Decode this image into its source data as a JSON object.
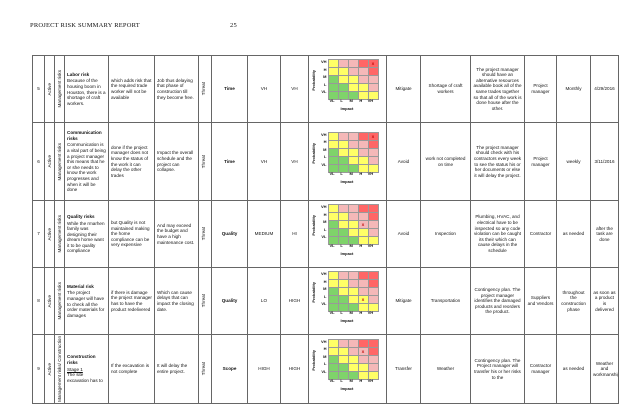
{
  "header": {
    "title": "PROJECT RISK SUMMARY REPORT",
    "page_number": "25"
  },
  "matrix_labels": {
    "probability": "Probability",
    "impact": "Impact",
    "row_levels": [
      "VH",
      "H",
      "M",
      "L",
      "VL"
    ],
    "col_levels": [
      "VL",
      "L",
      "M",
      "H",
      "VH"
    ],
    "mark": "X"
  },
  "colors": {
    "green": "#7fd36a",
    "yellow": "#ffff66",
    "red": "#ff6666",
    "pink": "#f5b8b8"
  },
  "rows": [
    {
      "id": "5",
      "status": "Active",
      "category": "Management risks",
      "title": "Labor risk",
      "description": "Because of the housing boom in Houston, there is a shortage of craft workers.",
      "cause": "which adds risk that the required trade worker will not be available",
      "effect": "Job thus delaying that phase of construction till they become free.",
      "type": "Threat",
      "objective": "Time",
      "probability": "VH",
      "impact": "VH",
      "mark_row": 0,
      "mark_col": 4,
      "response": "Mitigate",
      "trigger": "Shortage of craft workers",
      "plan": "The project manager should have an alternative resources available book all of the same trades together so that all of the work is done house after the other.",
      "owner": "Project manager",
      "frequency": "Monthly",
      "date": "4/29/2016"
    },
    {
      "id": "6",
      "status": "Active",
      "category": "Management risks",
      "title": "Communication risks",
      "description": "Communication is a vital part of being a project manager this means that he or she needs to know the work progresses and when it will be done",
      "cause": "done if the project manager does not know the status of the work it can delay the other trades",
      "effect": "Impact the overall schedule and the project can collapse.",
      "type": "Threat",
      "objective": "Time",
      "probability": "VH",
      "impact": "VH",
      "mark_row": 0,
      "mark_col": 4,
      "response": "Avoid",
      "trigger": "work not completed on time",
      "plan": "The project manager should check with his contractors every week to see the status his or her documents or else it will delay the project.",
      "owner": "Project manager",
      "frequency": "weekly",
      "date": "3/11/2016"
    },
    {
      "id": "7",
      "status": "Active",
      "category": "Management risks",
      "title": "Quality risks",
      "description": "While the rmarhen family was designing their dream home want it to be quality compliance",
      "cause": "but Quality is not maintained making the home compliance can be very expensive",
      "effect": "And may exceed the budget and have a high maintenance cost.",
      "type": "Threat",
      "objective": "Quality",
      "probability": "MEDIUM",
      "impact": "HI",
      "mark_row": 2,
      "mark_col": 3,
      "response": "Avoid",
      "trigger": "Inspection",
      "plan": "Plumbing, HVAC, and electrical have to be inspected so any code violation can be caught its their which can cause delays in the schedule",
      "owner": "Contractor",
      "frequency": "as needed",
      "date": "after the task are done"
    },
    {
      "id": "8",
      "status": "Active",
      "category": "Management risks",
      "title": "Material risk",
      "description": "The project manager will have to check all the order materials for damages",
      "cause": "if there is damage the project manager has to have the product redelivered",
      "effect": "Which can cause delays that can impact the closing date.",
      "type": "Threat",
      "objective": "Quality",
      "probability": "LO",
      "impact": "HIGH",
      "mark_row": 3,
      "mark_col": 3,
      "response": "Mitigate",
      "trigger": "Transportation",
      "plan": "Contingency plan. The project manager identifies the damaged products and reorders the product.",
      "owner": "Suppliers and Vendors",
      "frequency": "throughout the construction phase",
      "date": "as soon as a product is delivered"
    },
    {
      "id": "9",
      "status": "Active",
      "category": "Management risks/ Construction",
      "title": "Construction risks",
      "title_link": "Stage 1",
      "description": "The site excavation has to",
      "cause": "If the excavation is not complete",
      "effect": "It will delay the entire project.",
      "type": "Threat",
      "objective": "Scope",
      "probability": "HIGH",
      "impact": "HIGH",
      "mark_row": 1,
      "mark_col": 3,
      "response": "Transfer",
      "trigger": "Weather",
      "plan": "Contingency plan. The Project manager will transfer his or her risks to the",
      "owner": "Contractor manager",
      "frequency": "as needed",
      "date": "Weather and workmanship"
    }
  ]
}
